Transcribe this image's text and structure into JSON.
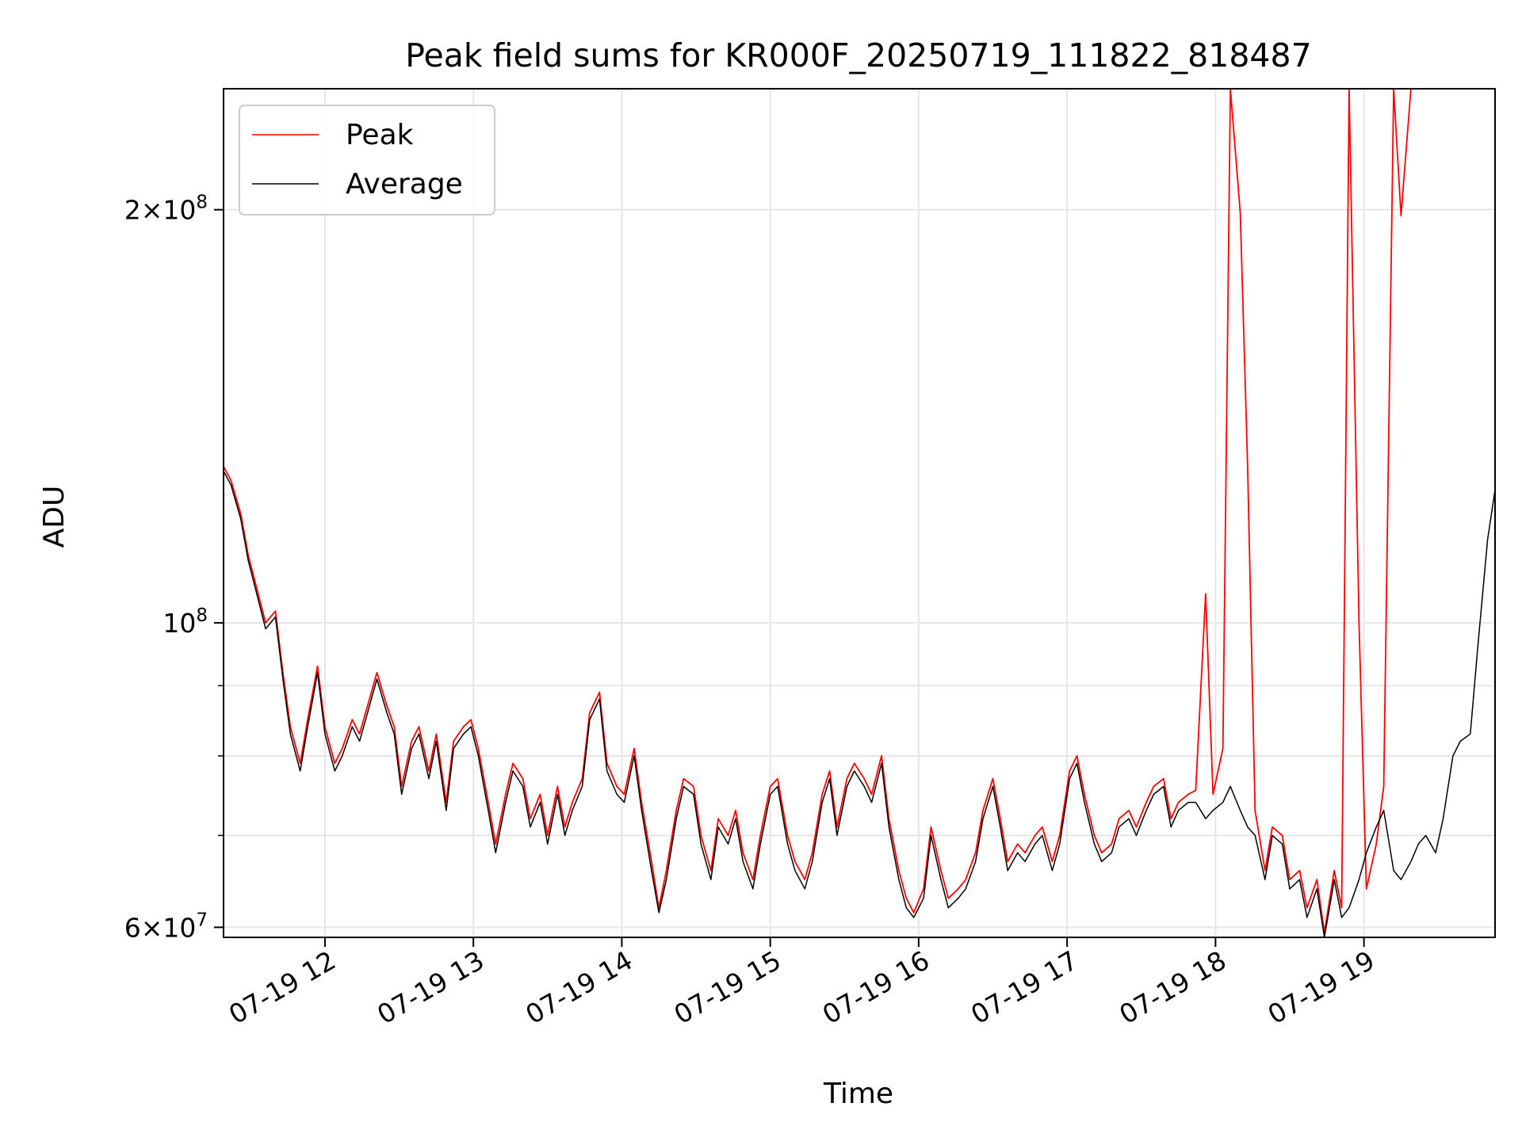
{
  "chart_data": {
    "type": "line",
    "title": "Peak field sums for KR000F_20250719_111822_818487",
    "xlabel": "Time",
    "ylabel": "ADU",
    "y_scale": "log",
    "ylim": [
      59000000,
      245000000
    ],
    "xlim": [
      "2025-07-19 11:19",
      "2025-07-19 19:53"
    ],
    "grid": true,
    "legend_position": "top-left",
    "x_ticks": [
      {
        "value": "2025-07-19 12:00",
        "label": "07-19 12"
      },
      {
        "value": "2025-07-19 13:00",
        "label": "07-19 13"
      },
      {
        "value": "2025-07-19 14:00",
        "label": "07-19 14"
      },
      {
        "value": "2025-07-19 15:00",
        "label": "07-19 15"
      },
      {
        "value": "2025-07-19 16:00",
        "label": "07-19 16"
      },
      {
        "value": "2025-07-19 17:00",
        "label": "07-19 17"
      },
      {
        "value": "2025-07-19 18:00",
        "label": "07-19 18"
      },
      {
        "value": "2025-07-19 19:00",
        "label": "07-19 19"
      }
    ],
    "y_major_ticks": [
      {
        "value": 60000000,
        "mantissa": "6",
        "exp": "7"
      },
      {
        "value": 100000000,
        "mantissa": "",
        "exp": "8"
      },
      {
        "value": 200000000,
        "mantissa": "2",
        "exp": "8"
      }
    ],
    "y_minor_ticks": [
      70000000,
      80000000,
      90000000,
      300000000
    ],
    "x": [
      "2025-07-19 11:19",
      "2025-07-19 11:22",
      "2025-07-19 11:26",
      "2025-07-19 11:29",
      "2025-07-19 11:33",
      "2025-07-19 11:36",
      "2025-07-19 11:40",
      "2025-07-19 11:43",
      "2025-07-19 11:46",
      "2025-07-19 11:50",
      "2025-07-19 11:53",
      "2025-07-19 11:57",
      "2025-07-19 12:00",
      "2025-07-19 12:04",
      "2025-07-19 12:07",
      "2025-07-19 12:11",
      "2025-07-19 12:14",
      "2025-07-19 12:18",
      "2025-07-19 12:21",
      "2025-07-19 12:25",
      "2025-07-19 12:28",
      "2025-07-19 12:31",
      "2025-07-19 12:35",
      "2025-07-19 12:38",
      "2025-07-19 12:42",
      "2025-07-19 12:45",
      "2025-07-19 12:49",
      "2025-07-19 12:52",
      "2025-07-19 12:56",
      "2025-07-19 12:59",
      "2025-07-19 13:02",
      "2025-07-19 13:06",
      "2025-07-19 13:09",
      "2025-07-19 13:13",
      "2025-07-19 13:16",
      "2025-07-19 13:20",
      "2025-07-19 13:23",
      "2025-07-19 13:27",
      "2025-07-19 13:30",
      "2025-07-19 13:34",
      "2025-07-19 13:37",
      "2025-07-19 13:40",
      "2025-07-19 13:44",
      "2025-07-19 13:47",
      "2025-07-19 13:51",
      "2025-07-19 13:54",
      "2025-07-19 13:58",
      "2025-07-19 14:01",
      "2025-07-19 14:05",
      "2025-07-19 14:08",
      "2025-07-19 14:12",
      "2025-07-19 14:15",
      "2025-07-19 14:18",
      "2025-07-19 14:22",
      "2025-07-19 14:25",
      "2025-07-19 14:29",
      "2025-07-19 14:32",
      "2025-07-19 14:36",
      "2025-07-19 14:39",
      "2025-07-19 14:43",
      "2025-07-19 14:46",
      "2025-07-19 14:49",
      "2025-07-19 14:53",
      "2025-07-19 14:56",
      "2025-07-19 15:00",
      "2025-07-19 15:03",
      "2025-07-19 15:07",
      "2025-07-19 15:10",
      "2025-07-19 15:14",
      "2025-07-19 15:17",
      "2025-07-19 15:21",
      "2025-07-19 15:24",
      "2025-07-19 15:27",
      "2025-07-19 15:31",
      "2025-07-19 15:34",
      "2025-07-19 15:38",
      "2025-07-19 15:41",
      "2025-07-19 15:45",
      "2025-07-19 15:48",
      "2025-07-19 15:52",
      "2025-07-19 15:55",
      "2025-07-19 15:58",
      "2025-07-19 16:02",
      "2025-07-19 16:05",
      "2025-07-19 16:09",
      "2025-07-19 16:12",
      "2025-07-19 16:16",
      "2025-07-19 16:19",
      "2025-07-19 16:23",
      "2025-07-19 16:26",
      "2025-07-19 16:30",
      "2025-07-19 16:33",
      "2025-07-19 16:36",
      "2025-07-19 16:40",
      "2025-07-19 16:43",
      "2025-07-19 16:47",
      "2025-07-19 16:50",
      "2025-07-19 16:54",
      "2025-07-19 16:57",
      "2025-07-19 17:01",
      "2025-07-19 17:04",
      "2025-07-19 17:07",
      "2025-07-19 17:11",
      "2025-07-19 17:14",
      "2025-07-19 17:18",
      "2025-07-19 17:21",
      "2025-07-19 17:25",
      "2025-07-19 17:28",
      "2025-07-19 17:32",
      "2025-07-19 17:35",
      "2025-07-19 17:39",
      "2025-07-19 17:42",
      "2025-07-19 17:45",
      "2025-07-19 17:49",
      "2025-07-19 17:52",
      "2025-07-19 17:56",
      "2025-07-19 17:59",
      "2025-07-19 18:03",
      "2025-07-19 18:06",
      "2025-07-19 18:10",
      "2025-07-19 18:13",
      "2025-07-19 18:16",
      "2025-07-19 18:20",
      "2025-07-19 18:23",
      "2025-07-19 18:27",
      "2025-07-19 18:30",
      "2025-07-19 18:34",
      "2025-07-19 18:37",
      "2025-07-19 18:41",
      "2025-07-19 18:44",
      "2025-07-19 18:48",
      "2025-07-19 18:51",
      "2025-07-19 18:54",
      "2025-07-19 18:58",
      "2025-07-19 19:01",
      "2025-07-19 19:05",
      "2025-07-19 19:08",
      "2025-07-19 19:12",
      "2025-07-19 19:15",
      "2025-07-19 19:19",
      "2025-07-19 19:22",
      "2025-07-19 19:25",
      "2025-07-19 19:29",
      "2025-07-19 19:32",
      "2025-07-19 19:36",
      "2025-07-19 19:39",
      "2025-07-19 19:43",
      "2025-07-19 19:46",
      "2025-07-19 19:50",
      "2025-07-19 19:53"
    ],
    "series": [
      {
        "name": "Peak",
        "color": "#ff0000",
        "values": [
          130000000,
          127000000,
          120000000,
          112000000,
          105000000,
          100000000,
          102000000,
          92000000,
          84000000,
          79000000,
          85000000,
          93000000,
          84000000,
          79000000,
          81000000,
          85000000,
          83000000,
          88000000,
          92000000,
          87000000,
          84000000,
          76000000,
          82000000,
          84000000,
          78000000,
          83000000,
          74000000,
          82000000,
          84000000,
          85000000,
          81000000,
          74000000,
          69000000,
          75000000,
          79000000,
          77000000,
          72000000,
          75000000,
          70000000,
          76000000,
          71000000,
          74000000,
          77000000,
          86000000,
          89000000,
          79000000,
          76000000,
          75000000,
          81000000,
          74000000,
          67000000,
          62000000,
          66000000,
          73000000,
          77000000,
          76000000,
          70000000,
          66000000,
          72000000,
          70000000,
          73000000,
          68000000,
          65000000,
          70000000,
          76000000,
          77000000,
          70000000,
          67000000,
          65000000,
          68000000,
          75000000,
          78000000,
          71000000,
          77000000,
          79000000,
          77000000,
          75000000,
          80000000,
          72000000,
          66000000,
          63000000,
          61500000,
          64000000,
          71000000,
          66000000,
          63000000,
          64000000,
          65000000,
          68000000,
          73000000,
          77000000,
          72000000,
          67000000,
          69000000,
          68000000,
          70000000,
          71000000,
          67000000,
          70000000,
          78000000,
          80000000,
          75000000,
          70000000,
          68000000,
          69000000,
          72000000,
          73000000,
          71000000,
          74000000,
          76000000,
          77000000,
          72000000,
          74000000,
          75000000,
          75500000,
          105000000,
          75000000,
          81000000,
          245000000,
          199000000,
          130000000,
          73000000,
          66000000,
          71000000,
          70000000,
          65000000,
          66000000,
          62000000,
          65000000,
          59500000,
          66000000,
          62000000,
          245000000,
          100000000,
          64000000,
          69000000,
          76000000,
          245000000,
          198000000,
          245000000,
          245000000,
          245000000,
          245000000,
          245000000,
          245000000,
          245000000,
          245000000,
          245000000,
          245000000,
          245000000
        ]
      },
      {
        "name": "Average",
        "color": "#000000",
        "values": [
          129000000,
          126000000,
          119000000,
          111000000,
          104000000,
          99000000,
          101000000,
          91000000,
          83000000,
          78000000,
          84000000,
          92000000,
          83000000,
          78000000,
          80000000,
          84000000,
          82000000,
          87000000,
          91000000,
          86000000,
          83000000,
          75000000,
          81000000,
          83000000,
          77000000,
          82000000,
          73000000,
          81000000,
          83000000,
          84000000,
          80000000,
          73000000,
          68000000,
          74000000,
          78000000,
          76000000,
          71000000,
          74000000,
          69000000,
          75000000,
          70000000,
          73000000,
          76000000,
          85000000,
          88000000,
          78000000,
          75000000,
          74000000,
          80000000,
          73000000,
          66000000,
          61500000,
          65000000,
          72000000,
          76000000,
          75000000,
          69000000,
          65000000,
          71000000,
          69000000,
          72000000,
          67000000,
          64000000,
          69000000,
          75000000,
          76000000,
          69000000,
          66000000,
          64000000,
          67000000,
          74000000,
          77000000,
          70000000,
          76000000,
          78000000,
          76000000,
          74000000,
          79000000,
          71000000,
          65000000,
          62000000,
          61000000,
          63000000,
          70000000,
          65000000,
          62000000,
          63000000,
          64000000,
          67000000,
          72000000,
          76000000,
          71000000,
          66000000,
          68000000,
          67000000,
          69000000,
          70000000,
          66000000,
          69000000,
          77000000,
          79000000,
          74000000,
          69000000,
          67000000,
          68000000,
          71000000,
          72000000,
          70000000,
          73000000,
          75000000,
          76000000,
          71000000,
          73000000,
          74000000,
          74000000,
          72000000,
          73000000,
          74000000,
          76000000,
          73000000,
          71000000,
          70000000,
          65000000,
          70000000,
          69000000,
          64000000,
          65000000,
          61000000,
          64000000,
          59000000,
          65000000,
          61000000,
          62000000,
          65000000,
          68000000,
          71000000,
          73000000,
          66000000,
          65000000,
          67000000,
          69000000,
          70000000,
          68000000,
          72000000,
          80000000,
          82000000,
          83000000,
          96000000,
          115000000,
          125000000
        ]
      }
    ]
  }
}
